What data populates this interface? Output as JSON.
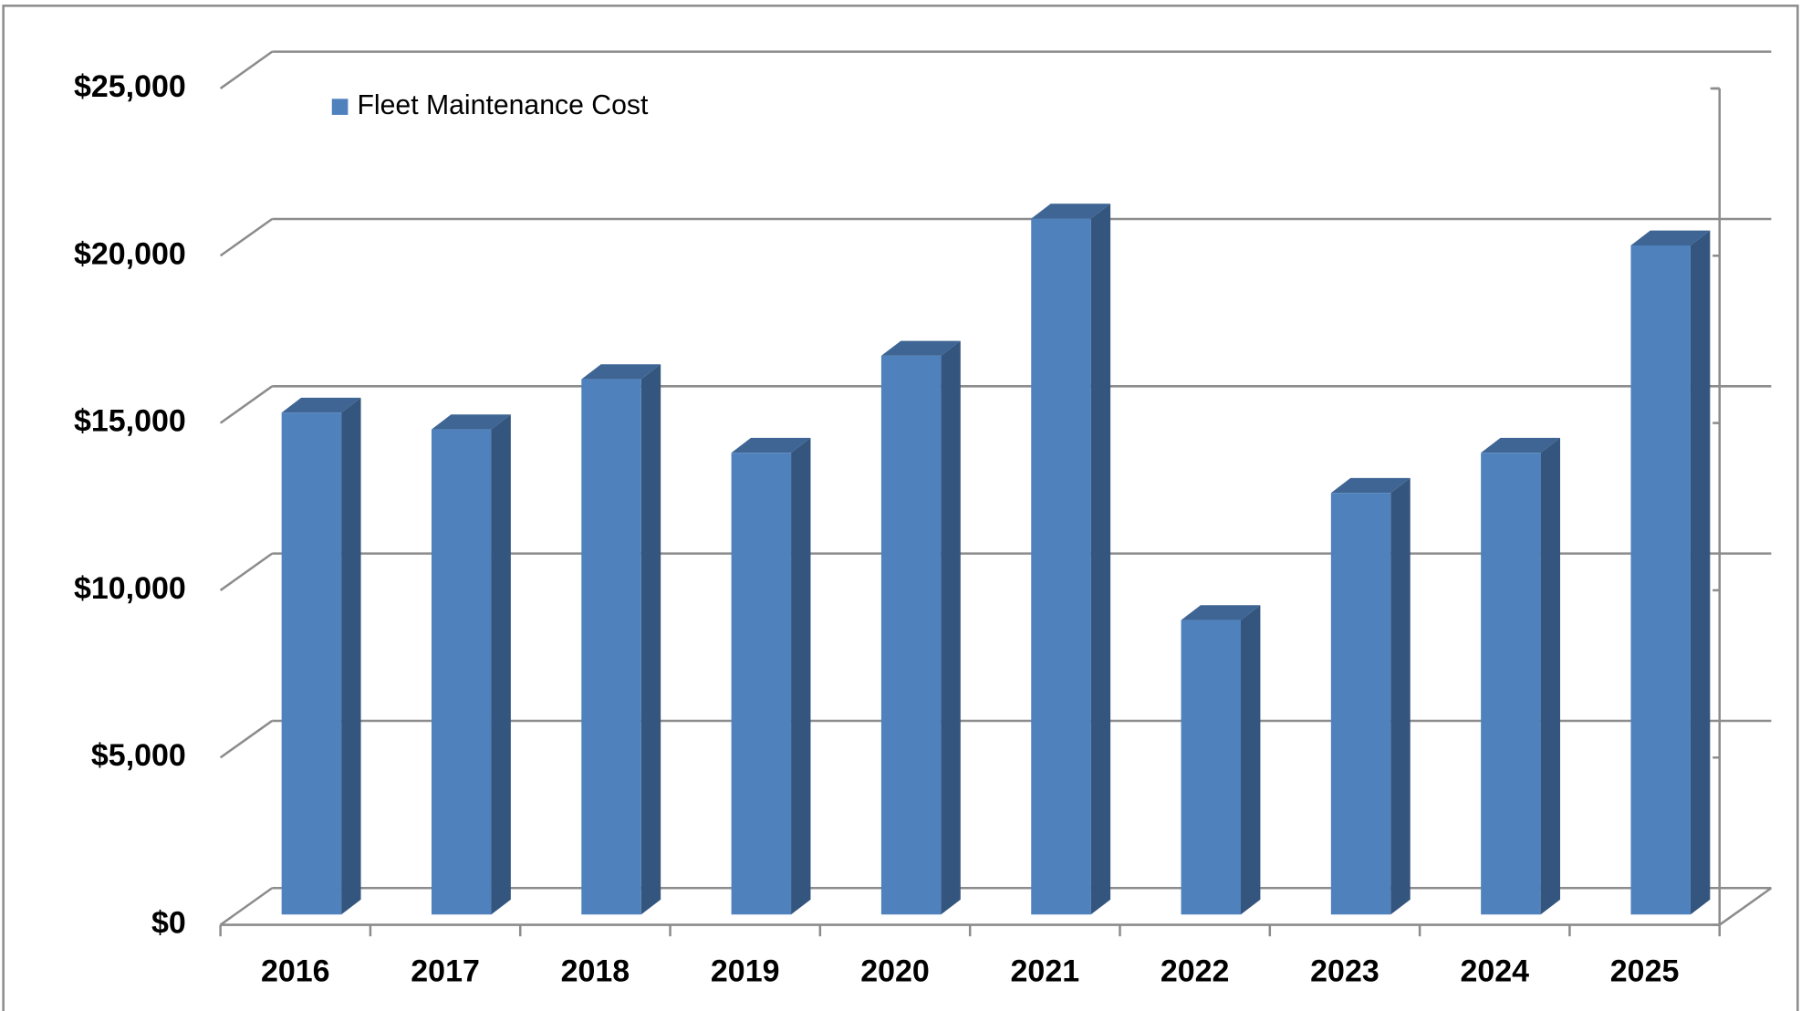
{
  "chart_data": {
    "type": "bar3d",
    "categories": [
      "2016",
      "2017",
      "2018",
      "2019",
      "2020",
      "2021",
      "2022",
      "2023",
      "2024",
      "2025"
    ],
    "series": [
      {
        "name": "Fleet Maintenance Cost",
        "color": "#4f81bd",
        "values": [
          15000,
          14500,
          16000,
          13800,
          16700,
          20800,
          8800,
          12600,
          13800,
          20000
        ]
      }
    ],
    "ylim": [
      0,
      25000
    ],
    "yticks": [
      {
        "value": 0,
        "label": "$0"
      },
      {
        "value": 5000,
        "label": "$5,000"
      },
      {
        "value": 10000,
        "label": "$10,000"
      },
      {
        "value": 15000,
        "label": "$15,000"
      },
      {
        "value": 20000,
        "label": "$20,000"
      },
      {
        "value": 25000,
        "label": "$25,000"
      }
    ],
    "grid": true,
    "legend": "top-left"
  }
}
